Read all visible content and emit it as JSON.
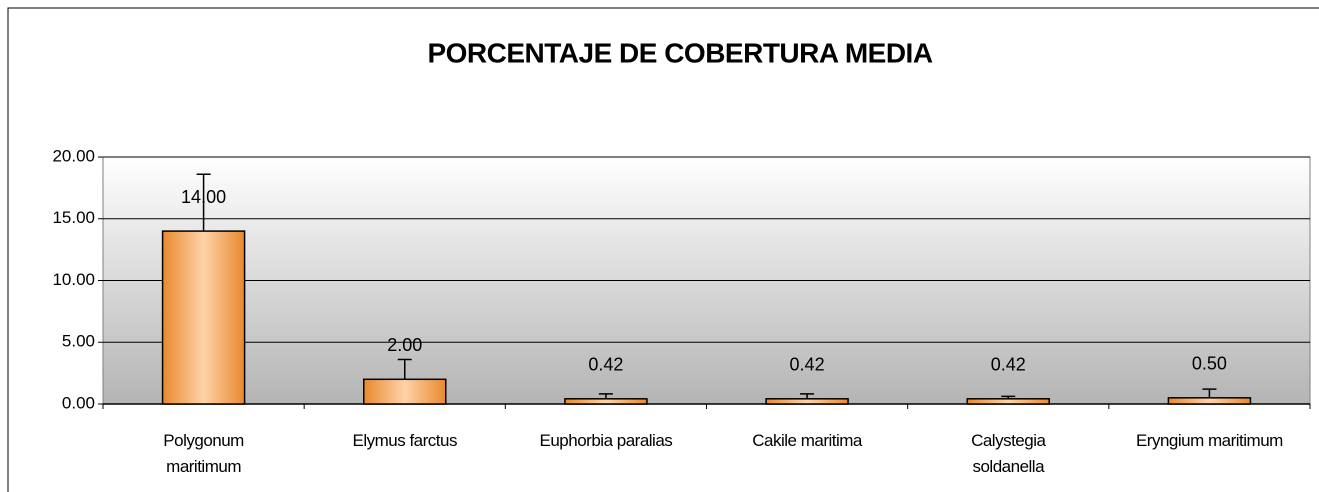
{
  "chart_data": {
    "type": "bar",
    "title": "PORCENTAJE DE COBERTURA MEDIA",
    "categories": [
      "Polygonum\nmaritimum",
      "Elymus farctus",
      "Euphorbia paralias",
      "Cakile maritima",
      "Calystegia\nsoldanella",
      "Eryngium maritimum"
    ],
    "values": [
      14,
      2,
      0.42,
      0.42,
      0.42,
      0.5
    ],
    "value_labels": [
      "14.00",
      "2.00",
      "0.42",
      "0.42",
      "0.42",
      "0.50"
    ],
    "errors": [
      4.6,
      1.6,
      0.4,
      0.4,
      0.2,
      0.7
    ],
    "color": "#f7a35c",
    "ylim": [
      0,
      20
    ],
    "yticks": [
      {
        "value": 0,
        "label": "0.00"
      },
      {
        "value": 5,
        "label": "5.00"
      },
      {
        "value": 10,
        "label": "10.00"
      },
      {
        "value": 15,
        "label": "15.00"
      },
      {
        "value": 20,
        "label": "20.00"
      }
    ],
    "grid": true
  }
}
